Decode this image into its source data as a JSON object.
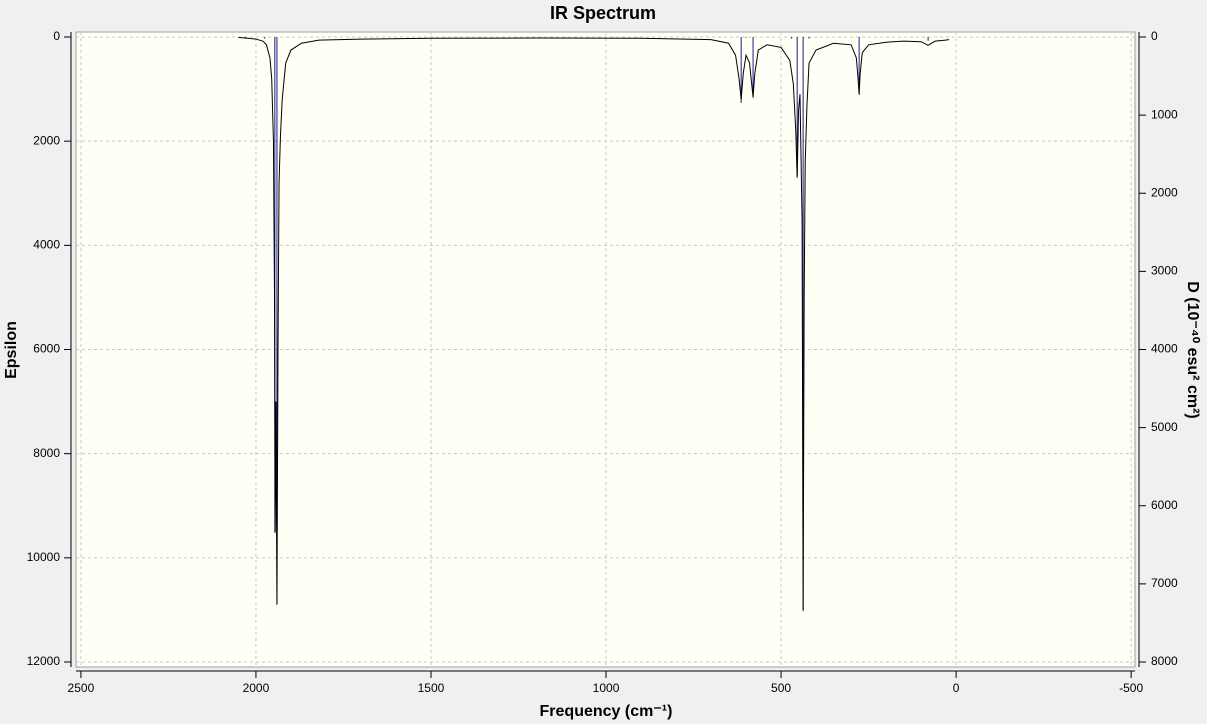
{
  "chart_data": {
    "type": "line",
    "title": "IR Spectrum",
    "x_label": "Frequency (cm⁻¹)",
    "y_label": "Epsilon",
    "y2_label": "D (10⁻⁴⁰ esu² cm²)",
    "xlim": [
      2514,
      -511
    ],
    "ylim": [
      -96,
      12096
    ],
    "y2lim": [
      -64,
      8064
    ],
    "xticks": [
      2500,
      2000,
      1500,
      1000,
      500,
      0,
      -500
    ],
    "yticks": [
      0,
      2000,
      4000,
      6000,
      8000,
      10000,
      12000
    ],
    "y2ticks": [
      0,
      1000,
      2000,
      3000,
      4000,
      5000,
      6000,
      7000,
      8000
    ],
    "grid": true,
    "series": [
      {
        "type": "line",
        "color": "#000000",
        "x": [
          2050,
          2030,
          2000,
          1980,
          1970,
          1960,
          1955,
          1950,
          1947,
          1945,
          1943,
          1940,
          1937,
          1934,
          1930,
          1925,
          1915,
          1900,
          1870,
          1820,
          1700,
          1500,
          1200,
          900,
          700,
          650,
          630,
          620,
          614,
          608,
          600,
          590,
          584,
          580,
          575,
          565,
          540,
          500,
          475,
          465,
          458,
          454,
          450,
          446,
          440,
          437,
          434,
          431,
          426,
          420,
          400,
          350,
          300,
          285,
          280,
          277,
          274,
          268,
          250,
          200,
          150,
          100,
          80,
          60,
          30,
          20
        ],
        "values": [
          10,
          20,
          40,
          80,
          150,
          400,
          800,
          2000,
          5000,
          9500,
          7000,
          10900,
          6000,
          2800,
          1900,
          1200,
          500,
          250,
          120,
          60,
          40,
          25,
          20,
          25,
          50,
          120,
          350,
          800,
          1200,
          700,
          350,
          500,
          900,
          1150,
          700,
          250,
          150,
          200,
          450,
          900,
          1800,
          2700,
          1400,
          1100,
          3500,
          11000,
          5000,
          2400,
          1300,
          500,
          250,
          120,
          150,
          400,
          800,
          1100,
          700,
          300,
          150,
          100,
          80,
          90,
          160,
          80,
          60,
          50
        ]
      },
      {
        "type": "stick",
        "axis": "y2",
        "color": "#1a1a8c",
        "x": [
          2030,
          1975,
          1946,
          1940,
          614,
          600,
          580,
          470,
          454,
          437,
          420,
          277,
          80
        ],
        "values": [
          20,
          20,
          6350,
          7260,
          845,
          10,
          780,
          20,
          1780,
          7350,
          20,
          740,
          50
        ]
      }
    ]
  }
}
